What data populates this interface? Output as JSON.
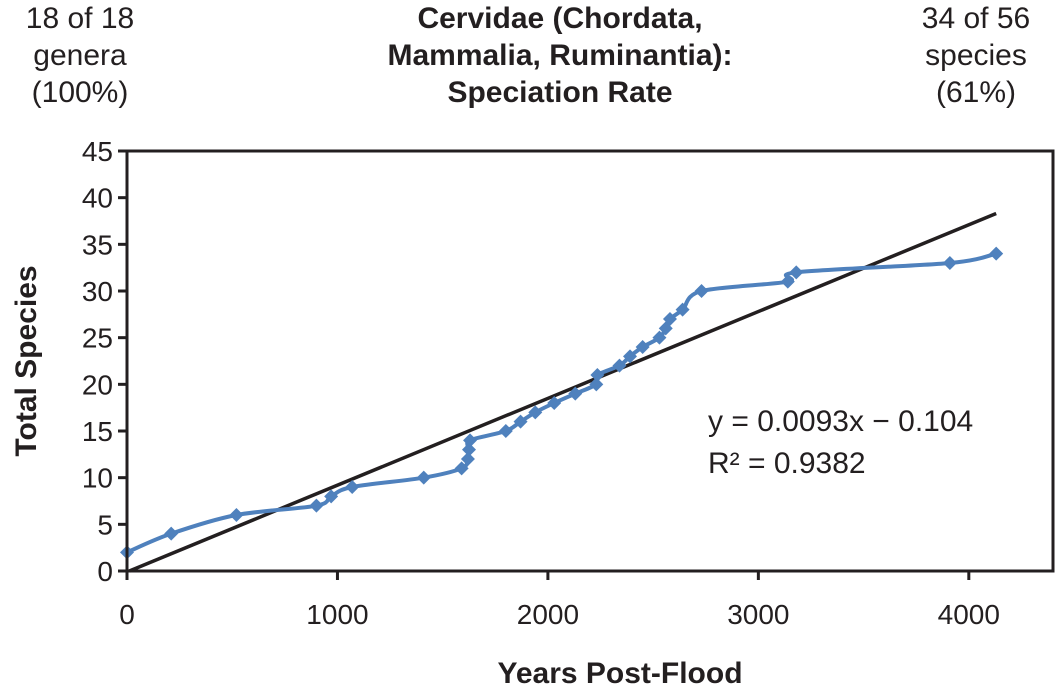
{
  "header": {
    "left_note": [
      "18 of 18",
      "genera",
      "(100%)"
    ],
    "right_note": [
      "34 of 56",
      "species",
      "(61%)"
    ]
  },
  "chart_data": {
    "type": "scatter",
    "title": [
      "Cervidae (Chordata,",
      "Mammalia, Ruminantia):",
      "Speciation Rate"
    ],
    "xlabel": "Years Post-Flood",
    "ylabel": "Total Species",
    "xlim": [
      0,
      4400
    ],
    "ylim": [
      0,
      45
    ],
    "xticks": [
      0,
      1000,
      2000,
      3000,
      4000
    ],
    "yticks": [
      0,
      5,
      10,
      15,
      20,
      25,
      30,
      35,
      40,
      45
    ],
    "grid": false,
    "series": [
      {
        "color": "#4f81bd",
        "marker": "diamond",
        "x": [
          0,
          210,
          520,
          900,
          970,
          1070,
          1410,
          1590,
          1620,
          1625,
          1630,
          1800,
          1870,
          1940,
          2030,
          2130,
          2230,
          2235,
          2340,
          2390,
          2450,
          2530,
          2560,
          2580,
          2640,
          2730,
          3140,
          3180,
          3910,
          4130
        ],
        "y": [
          2,
          4,
          6,
          7,
          8,
          9,
          10,
          11,
          12,
          13,
          14,
          15,
          16,
          17,
          18,
          19,
          20,
          21,
          22,
          23,
          24,
          25,
          26,
          27,
          28,
          30,
          31,
          32,
          33,
          34
        ]
      },
      {
        "color": "#231f20",
        "trendline": true,
        "x": [
          0,
          4130
        ],
        "y": [
          -0.104,
          38.305
        ]
      }
    ],
    "annotations": [
      "y = 0.0093x − 0.104",
      "R² = 0.9382"
    ]
  }
}
